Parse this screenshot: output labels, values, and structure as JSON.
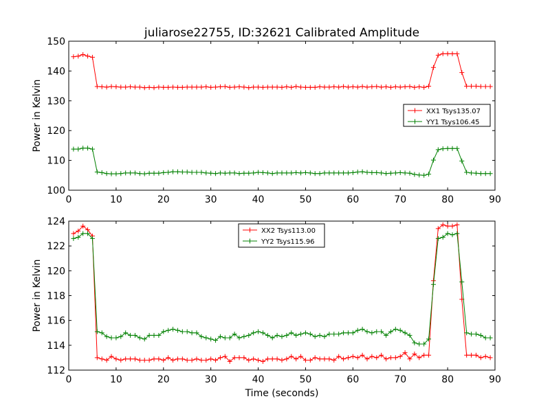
{
  "figure": {
    "title": "juliarose22755, ID:32621 Calibrated Amplitude",
    "xlabel": "Time (seconds)"
  },
  "colors": {
    "red": "#ff0000",
    "green": "#008000"
  },
  "chart_data": [
    {
      "type": "line",
      "ylabel": "Power in Kelvin",
      "xlim": [
        0,
        90
      ],
      "ylim": [
        100,
        150
      ],
      "xticks": [
        0,
        10,
        20,
        30,
        40,
        50,
        60,
        70,
        80,
        90
      ],
      "yticks": [
        100,
        110,
        120,
        130,
        140,
        150
      ],
      "grid": false,
      "legend_position": "center-right",
      "x": [
        1,
        2,
        3,
        4,
        5,
        6,
        7,
        8,
        9,
        10,
        11,
        12,
        13,
        14,
        15,
        16,
        17,
        18,
        19,
        20,
        21,
        22,
        23,
        24,
        25,
        26,
        27,
        28,
        29,
        30,
        31,
        32,
        33,
        34,
        35,
        36,
        37,
        38,
        39,
        40,
        41,
        42,
        43,
        44,
        45,
        46,
        47,
        48,
        49,
        50,
        51,
        52,
        53,
        54,
        55,
        56,
        57,
        58,
        59,
        60,
        61,
        62,
        63,
        64,
        65,
        66,
        67,
        68,
        69,
        70,
        71,
        72,
        73,
        74,
        75,
        76,
        77,
        78,
        79,
        80,
        81,
        82,
        83,
        84,
        85,
        86,
        87,
        88,
        89
      ],
      "series": [
        {
          "name": "XX1 Tsys135.07",
          "color": "#ff0000",
          "values": [
            144.8,
            145.0,
            145.5,
            145.0,
            144.6,
            134.8,
            134.7,
            134.6,
            134.8,
            134.7,
            134.6,
            134.6,
            134.7,
            134.6,
            134.6,
            134.4,
            134.5,
            134.4,
            134.6,
            134.5,
            134.5,
            134.6,
            134.5,
            134.5,
            134.6,
            134.6,
            134.6,
            134.6,
            134.7,
            134.5,
            134.6,
            134.7,
            134.8,
            134.5,
            134.6,
            134.7,
            134.6,
            134.4,
            134.6,
            134.6,
            134.5,
            134.6,
            134.6,
            134.6,
            134.5,
            134.7,
            134.5,
            134.8,
            134.6,
            134.5,
            134.5,
            134.5,
            134.7,
            134.6,
            134.6,
            134.7,
            134.6,
            134.8,
            134.6,
            134.7,
            134.6,
            134.8,
            134.6,
            134.7,
            134.8,
            134.6,
            134.7,
            134.5,
            134.7,
            134.6,
            134.7,
            134.8,
            134.5,
            134.7,
            134.5,
            134.9,
            141.2,
            145.3,
            145.8,
            145.8,
            145.8,
            145.8,
            139.5,
            134.9,
            134.9,
            134.9,
            134.8,
            134.8,
            134.8
          ]
        },
        {
          "name": "YY1 Tsys106.45",
          "color": "#008000",
          "values": [
            113.8,
            113.8,
            114.1,
            114.1,
            113.8,
            106.1,
            105.9,
            105.6,
            105.5,
            105.5,
            105.6,
            105.8,
            105.8,
            105.8,
            105.6,
            105.5,
            105.7,
            105.7,
            105.7,
            105.9,
            106.0,
            106.2,
            106.2,
            106.1,
            106.1,
            106.0,
            106.0,
            106.0,
            105.8,
            105.7,
            105.6,
            105.8,
            105.7,
            105.8,
            105.8,
            105.6,
            105.7,
            105.7,
            105.8,
            106.0,
            105.9,
            105.8,
            105.6,
            105.8,
            105.8,
            105.8,
            105.8,
            105.9,
            105.8,
            105.9,
            105.8,
            105.6,
            105.6,
            105.8,
            105.8,
            105.8,
            105.8,
            105.8,
            105.8,
            105.9,
            106.1,
            106.2,
            106.0,
            105.9,
            105.9,
            105.8,
            105.6,
            105.7,
            105.8,
            105.9,
            105.8,
            105.7,
            105.3,
            105.1,
            105.0,
            105.4,
            110.1,
            113.6,
            113.9,
            114.0,
            114.0,
            114.0,
            109.8,
            106.0,
            105.8,
            105.7,
            105.6,
            105.6,
            105.6
          ]
        }
      ]
    },
    {
      "type": "line",
      "ylabel": "Power in Kelvin",
      "xlim": [
        0,
        90
      ],
      "ylim": [
        112,
        124
      ],
      "xticks": [
        0,
        10,
        20,
        30,
        40,
        50,
        60,
        70,
        80,
        90
      ],
      "yticks": [
        112,
        114,
        116,
        118,
        120,
        122,
        124
      ],
      "grid": false,
      "legend_position": "top-center",
      "x": [
        1,
        2,
        3,
        4,
        5,
        6,
        7,
        8,
        9,
        10,
        11,
        12,
        13,
        14,
        15,
        16,
        17,
        18,
        19,
        20,
        21,
        22,
        23,
        24,
        25,
        26,
        27,
        28,
        29,
        30,
        31,
        32,
        33,
        34,
        35,
        36,
        37,
        38,
        39,
        40,
        41,
        42,
        43,
        44,
        45,
        46,
        47,
        48,
        49,
        50,
        51,
        52,
        53,
        54,
        55,
        56,
        57,
        58,
        59,
        60,
        61,
        62,
        63,
        64,
        65,
        66,
        67,
        68,
        69,
        70,
        71,
        72,
        73,
        74,
        75,
        76,
        77,
        78,
        79,
        80,
        81,
        82,
        83,
        84,
        85,
        86,
        87,
        88,
        89
      ],
      "series": [
        {
          "name": "XX2 Tsys113.00",
          "color": "#ff0000",
          "values": [
            123.0,
            123.2,
            123.6,
            123.3,
            122.8,
            113.0,
            112.9,
            112.8,
            113.1,
            112.9,
            112.8,
            112.9,
            112.9,
            112.9,
            112.8,
            112.8,
            112.8,
            112.9,
            112.9,
            112.8,
            113.0,
            112.8,
            112.9,
            112.9,
            112.8,
            112.8,
            112.9,
            112.8,
            112.8,
            112.9,
            112.8,
            113.0,
            113.1,
            112.7,
            113.0,
            113.0,
            113.0,
            112.8,
            112.9,
            112.8,
            112.7,
            112.9,
            112.9,
            112.9,
            112.8,
            112.9,
            113.1,
            112.9,
            113.1,
            112.8,
            112.8,
            113.0,
            112.9,
            112.9,
            112.9,
            112.8,
            113.1,
            112.9,
            113.0,
            113.1,
            113.0,
            113.2,
            112.9,
            113.1,
            113.0,
            113.2,
            112.9,
            113.0,
            113.0,
            113.1,
            113.4,
            112.9,
            113.3,
            113.0,
            113.2,
            113.2,
            119.2,
            123.4,
            123.7,
            123.6,
            123.6,
            123.7,
            117.7,
            113.2,
            113.2,
            113.2,
            113.0,
            113.1,
            113.0
          ]
        },
        {
          "name": "YY2 Tsys115.96",
          "color": "#008000",
          "values": [
            122.6,
            122.7,
            123.0,
            123.0,
            122.6,
            115.1,
            115.0,
            114.7,
            114.6,
            114.6,
            114.7,
            115.0,
            114.8,
            114.8,
            114.6,
            114.5,
            114.8,
            114.8,
            114.8,
            115.1,
            115.2,
            115.3,
            115.2,
            115.1,
            115.1,
            115.0,
            115.0,
            114.7,
            114.6,
            114.5,
            114.4,
            114.7,
            114.6,
            114.6,
            114.9,
            114.6,
            114.7,
            114.8,
            115.0,
            115.1,
            115.0,
            114.8,
            114.6,
            114.8,
            114.7,
            114.8,
            115.0,
            114.8,
            114.9,
            115.0,
            114.9,
            114.7,
            114.8,
            114.7,
            114.9,
            114.9,
            114.9,
            115.0,
            115.0,
            115.0,
            115.2,
            115.3,
            115.1,
            115.0,
            115.1,
            115.1,
            114.8,
            115.1,
            115.3,
            115.2,
            115.0,
            114.8,
            114.2,
            114.1,
            114.1,
            114.5,
            118.9,
            122.6,
            122.7,
            123.0,
            122.9,
            123.0,
            119.1,
            115.0,
            114.9,
            114.9,
            114.8,
            114.6,
            114.6
          ]
        }
      ]
    }
  ]
}
